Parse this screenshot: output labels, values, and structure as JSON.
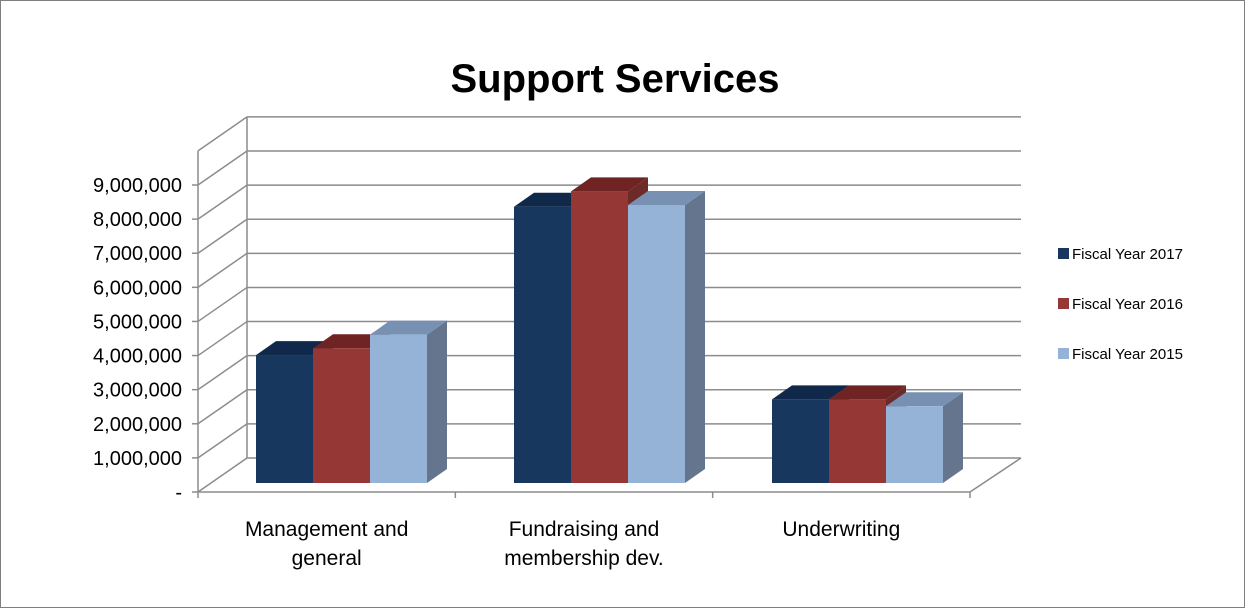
{
  "chart_data": {
    "type": "bar",
    "title": "Support Services",
    "categories": [
      "Management and general",
      "Fundraising and membership dev.",
      "Underwriting"
    ],
    "category_lines": [
      [
        "Management and",
        "general"
      ],
      [
        "Fundraising and",
        "membership dev."
      ],
      [
        "Underwriting"
      ]
    ],
    "series": [
      {
        "name": "Fiscal Year 2017",
        "values": [
          3750000,
          8100000,
          2450000
        ]
      },
      {
        "name": "Fiscal Year 2016",
        "values": [
          3950000,
          8550000,
          2450000
        ]
      },
      {
        "name": "Fiscal Year 2015",
        "values": [
          4350000,
          8150000,
          2250000
        ]
      }
    ],
    "y_ticks": [
      0,
      1000000,
      2000000,
      3000000,
      4000000,
      5000000,
      6000000,
      7000000,
      8000000,
      9000000
    ],
    "y_tick_labels": [
      "-",
      "1,000,000",
      "2,000,000",
      "3,000,000",
      "4,000,000",
      "5,000,000",
      "6,000,000",
      "7,000,000",
      "8,000,000",
      "9,000,000"
    ],
    "ylim": [
      0,
      9000000
    ],
    "xlabel": "",
    "ylabel": "",
    "grid": true,
    "legend_position": "right",
    "colors": {
      "series_front": [
        "#17375e",
        "#953735",
        "#95b3d7"
      ],
      "series_top": [
        "#10284a",
        "#6f2423",
        "#7891b3"
      ],
      "series_side": [
        "#122b4c",
        "#6d2a28",
        "#64758d"
      ],
      "grid": "#8c8c8c"
    }
  }
}
